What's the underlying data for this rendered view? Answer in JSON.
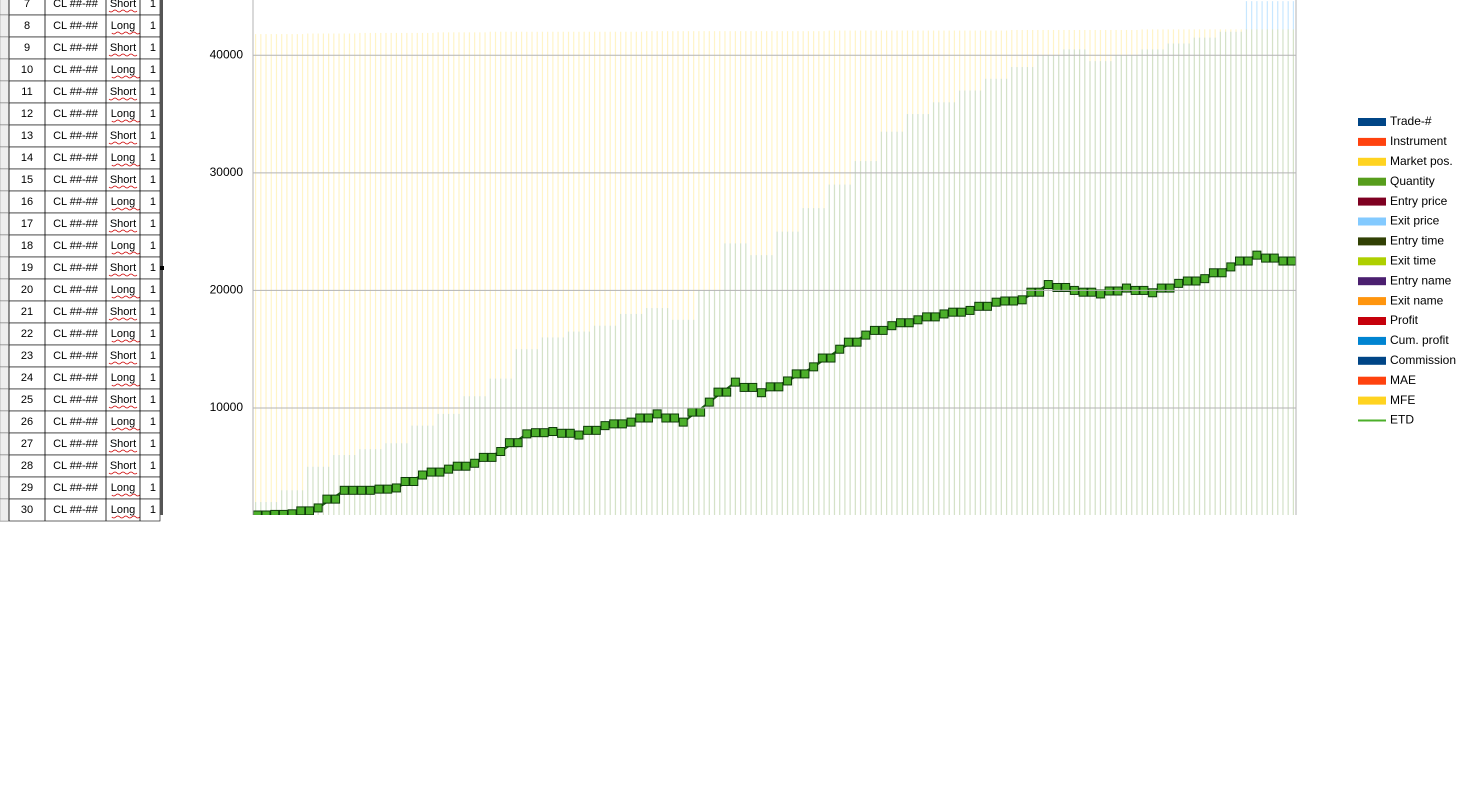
{
  "table": {
    "rows": [
      [
        "7",
        "CL ##-##",
        "Short",
        "1"
      ],
      [
        "8",
        "CL ##-##",
        "Long",
        "1"
      ],
      [
        "9",
        "CL ##-##",
        "Short",
        "1"
      ],
      [
        "10",
        "CL ##-##",
        "Long",
        "1"
      ],
      [
        "11",
        "CL ##-##",
        "Short",
        "1"
      ],
      [
        "12",
        "CL ##-##",
        "Long",
        "1"
      ],
      [
        "13",
        "CL ##-##",
        "Short",
        "1"
      ],
      [
        "14",
        "CL ##-##",
        "Long",
        "1"
      ],
      [
        "15",
        "CL ##-##",
        "Short",
        "1"
      ],
      [
        "16",
        "CL ##-##",
        "Long",
        "1"
      ],
      [
        "17",
        "CL ##-##",
        "Short",
        "1"
      ],
      [
        "18",
        "CL ##-##",
        "Long",
        "1"
      ],
      [
        "19",
        "CL ##-##",
        "Short",
        "1"
      ],
      [
        "20",
        "CL ##-##",
        "Long",
        "1"
      ],
      [
        "21",
        "CL ##-##",
        "Short",
        "1"
      ],
      [
        "22",
        "CL ##-##",
        "Long",
        "1"
      ],
      [
        "23",
        "CL ##-##",
        "Short",
        "1"
      ],
      [
        "24",
        "CL ##-##",
        "Long",
        "1"
      ],
      [
        "25",
        "CL ##-##",
        "Short",
        "1"
      ],
      [
        "26",
        "CL ##-##",
        "Long",
        "1"
      ],
      [
        "27",
        "CL ##-##",
        "Short",
        "1"
      ],
      [
        "28",
        "CL ##-##",
        "Short",
        "1"
      ],
      [
        "29",
        "CL ##-##",
        "Long",
        "1"
      ],
      [
        "30",
        "CL ##-##",
        "Long",
        "1"
      ]
    ]
  },
  "chart_data": {
    "type": "combo",
    "ylim": [
      900,
      44700
    ],
    "yticks": [
      10000,
      20000,
      30000,
      40000
    ],
    "grid": true,
    "series": [
      {
        "name": "Trade-#",
        "color": "#004586"
      },
      {
        "name": "Instrument",
        "color": "#ff420e"
      },
      {
        "name": "Market pos.",
        "color": "#ffd320"
      },
      {
        "name": "Quantity",
        "color": "#579d1c"
      },
      {
        "name": "Entry price",
        "color": "#7e0021"
      },
      {
        "name": "Exit price",
        "color": "#83caff",
        "kind": "bar",
        "values": [
          2000,
          3000,
          5000,
          6000,
          6500,
          7000,
          8500,
          9500,
          11000,
          12500,
          15000,
          16000,
          16500,
          17000,
          18000,
          18500,
          17500,
          20000,
          24000,
          23000,
          25000,
          27000,
          29000,
          31000,
          33500,
          35000,
          36000,
          37000,
          38000,
          39000,
          40000,
          40500,
          39500,
          40000,
          40500,
          41000,
          41500,
          42000,
          44600,
          44600
        ]
      },
      {
        "name": "Entry time",
        "color": "#314004"
      },
      {
        "name": "Exit time",
        "color": "#aecf00"
      },
      {
        "name": "Entry name",
        "color": "#4b1f6f"
      },
      {
        "name": "Exit name",
        "color": "#ff950e"
      },
      {
        "name": "Profit",
        "color": "#c5000b"
      },
      {
        "name": "Cum. profit",
        "color": "#0084d1"
      },
      {
        "name": "Commission",
        "color": "#004586"
      },
      {
        "name": "MAE",
        "color": "#ff420e"
      },
      {
        "name": "MFE",
        "color": "#ffd320",
        "kind": "bar",
        "values": [
          41800,
          41800,
          41850,
          41850,
          41900,
          41900,
          41900,
          41950,
          41950,
          42000,
          42000,
          42000,
          42000,
          42000,
          42000,
          42050,
          42050,
          42050,
          42050,
          42050,
          42050,
          42050,
          42100,
          42100,
          42100,
          42100,
          42100,
          42100,
          42100,
          42150,
          42150,
          42150,
          42150,
          42150,
          42200,
          42200,
          42200,
          42200,
          42200,
          42200
        ]
      },
      {
        "name": "ETD",
        "color": "#4caf2a",
        "kind": "line",
        "values": [
          900,
          1000,
          1500,
          3000,
          3000,
          3200,
          4300,
          4800,
          5300,
          6300,
          7800,
          8000,
          7700,
          8500,
          8800,
          9500,
          8800,
          10500,
          12200,
          11300,
          12300,
          13500,
          15000,
          16200,
          17000,
          17500,
          18000,
          18300,
          19000,
          19200,
          20500,
          20000,
          19700,
          20200,
          19800,
          20600,
          21000,
          22000,
          23000,
          22500
        ]
      }
    ]
  }
}
